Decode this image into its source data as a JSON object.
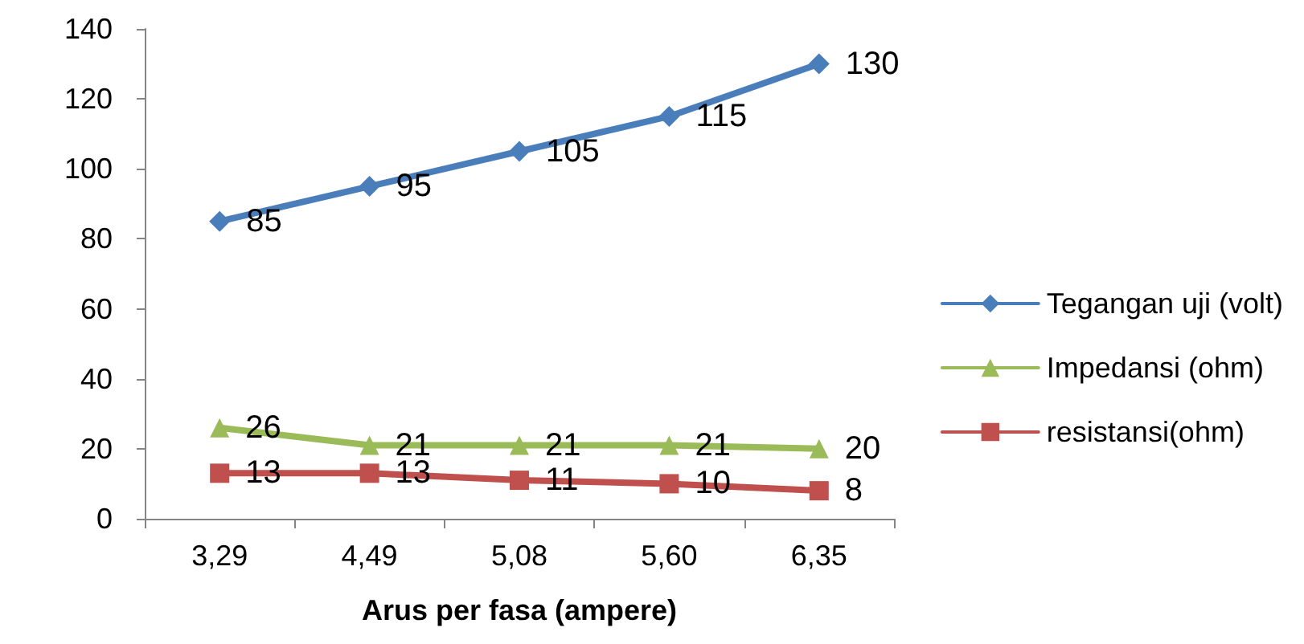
{
  "chart_data": {
    "type": "line",
    "xlabel": "Arus per fasa (ampere)",
    "categories": [
      "3,29",
      "4,49",
      "5,08",
      "5,60",
      "6,35"
    ],
    "series": [
      {
        "name": "Tegangan uji (volt)",
        "color": "#4a7ebb",
        "marker": "diamond",
        "values": [
          85,
          95,
          105,
          115,
          130
        ]
      },
      {
        "name": "Impedansi (ohm)",
        "color": "#9bbb59",
        "marker": "triangle",
        "values": [
          26,
          21,
          21,
          21,
          20
        ]
      },
      {
        "name": "resistansi(ohm)",
        "color": "#c0504d",
        "marker": "square",
        "values": [
          13,
          13,
          11,
          10,
          8
        ]
      }
    ],
    "ylim": [
      0,
      140
    ],
    "yticks": [
      0,
      20,
      40,
      60,
      80,
      100,
      120,
      140
    ],
    "data_labels": true,
    "legend": "right",
    "grid": false
  }
}
